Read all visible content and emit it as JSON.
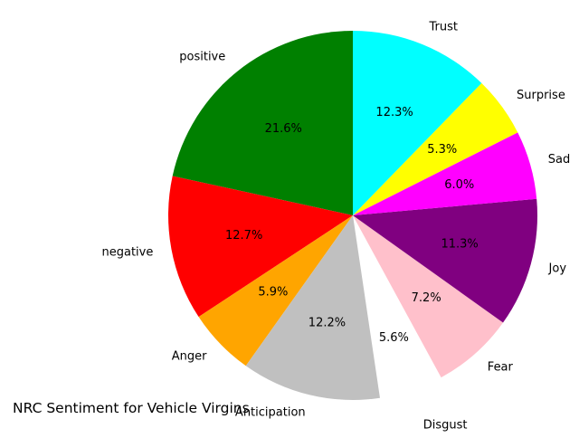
{
  "chart_data": {
    "type": "pie",
    "title": "NRC Sentiment for Vehicle Virgins",
    "start_angle_deg": 90,
    "direction": "counterclockwise",
    "slices": [
      {
        "label": "positive",
        "percent": 21.6,
        "pct_text": "21.6%",
        "color": "#008000",
        "explode": 0
      },
      {
        "label": "negative",
        "percent": 12.7,
        "pct_text": "12.7%",
        "color": "#ff0000",
        "explode": 0
      },
      {
        "label": "Anger",
        "percent": 5.9,
        "pct_text": "5.9%",
        "color": "#ffa500",
        "explode": 0
      },
      {
        "label": "Anticipation",
        "percent": 12.2,
        "pct_text": "12.2%",
        "color": "#c0c0c0",
        "explode": 0
      },
      {
        "label": "Disgust",
        "percent": 5.6,
        "pct_text": "5.6%",
        "color": "#ffffff",
        "explode": 1
      },
      {
        "label": "Fear",
        "percent": 7.2,
        "pct_text": "7.2%",
        "color": "#ffc0cb",
        "explode": 0
      },
      {
        "label": "Joy",
        "percent": 11.3,
        "pct_text": "11.3%",
        "color": "#800080",
        "explode": 0
      },
      {
        "label": "Sad",
        "percent": 6.0,
        "pct_text": "6.0%",
        "color": "#ff00ff",
        "explode": 0
      },
      {
        "label": "Surprise",
        "percent": 5.3,
        "pct_text": "5.3%",
        "color": "#ffff00",
        "explode": 0
      },
      {
        "label": "Trust",
        "percent": 12.3,
        "pct_text": "12.3%",
        "color": "#00ffff",
        "explode": 0
      }
    ]
  }
}
